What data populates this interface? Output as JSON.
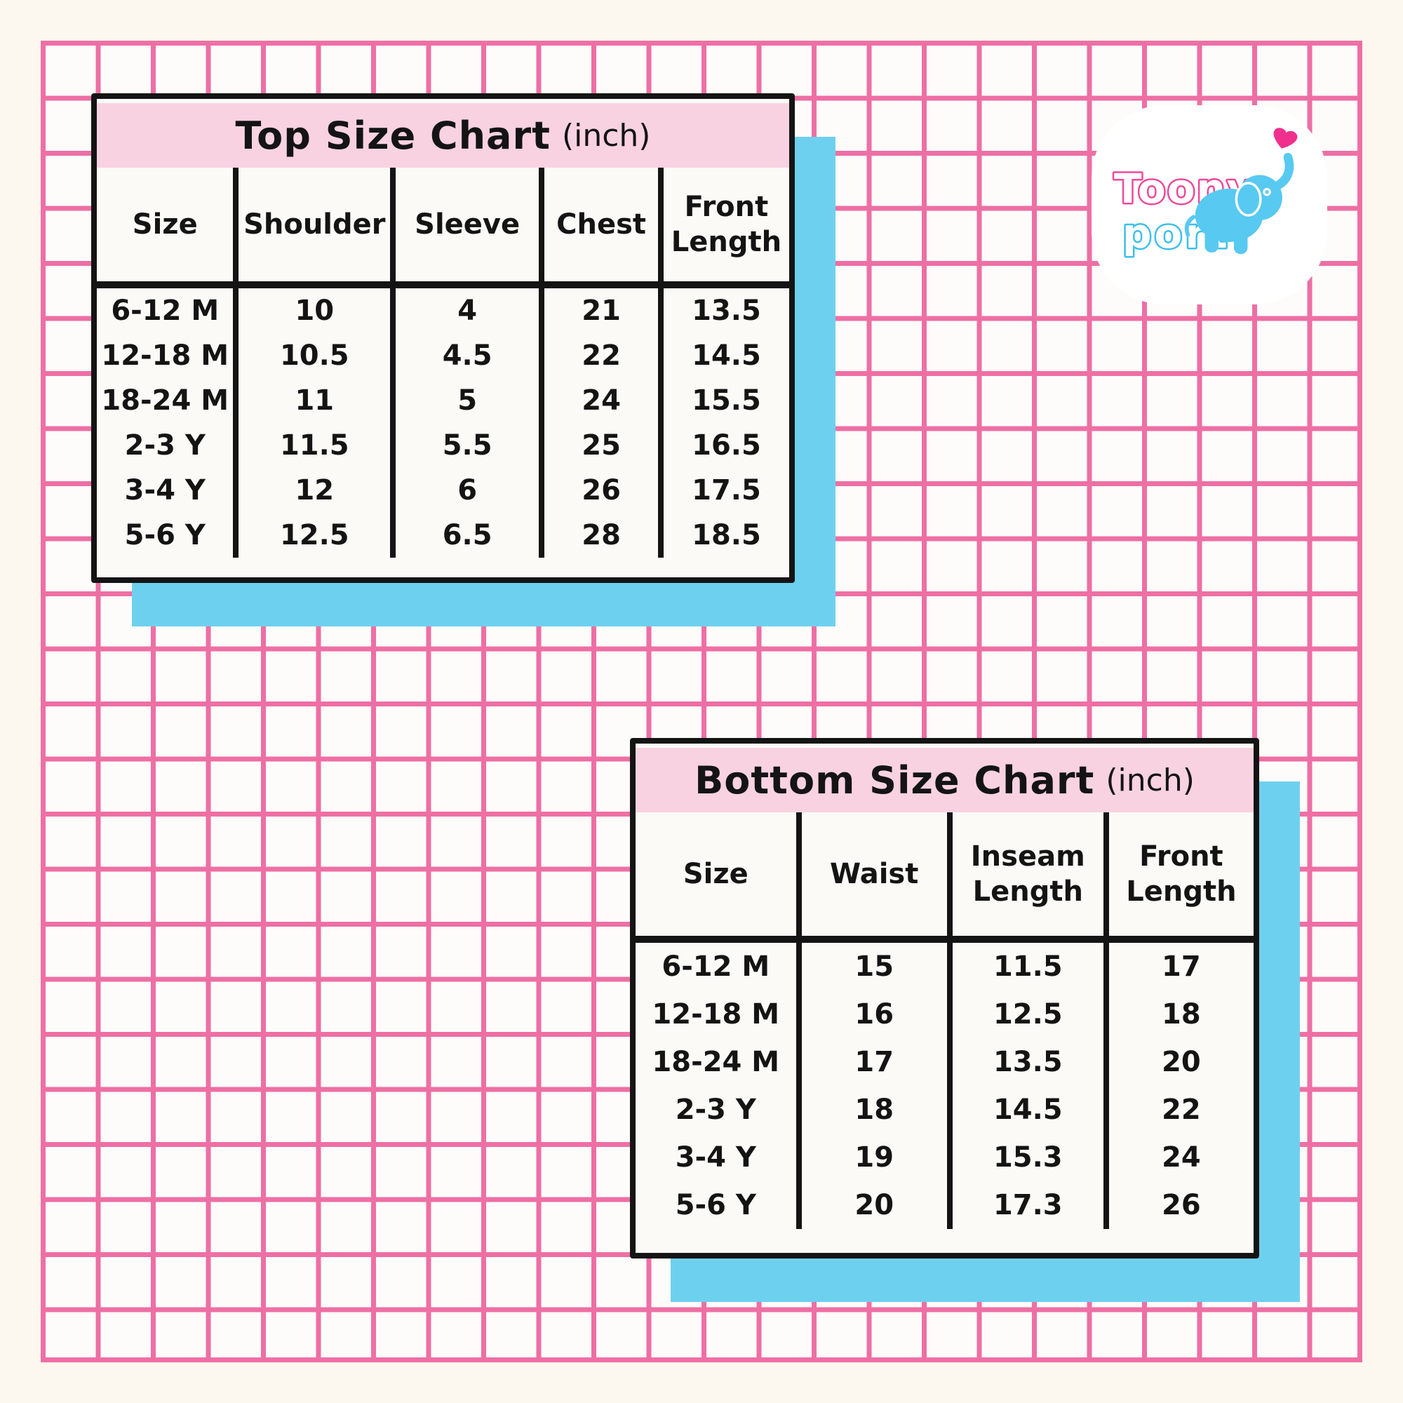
{
  "chart_data": [
    {
      "type": "table",
      "title": "Top Size Chart",
      "title_suffix": "(inch)",
      "columns": [
        "Size",
        "Shoulder",
        "Sleeve",
        "Chest",
        "Front Length"
      ],
      "rows": [
        [
          "6-12 M",
          "10",
          "4",
          "21",
          "13.5"
        ],
        [
          "12-18 M",
          "10.5",
          "4.5",
          "22",
          "14.5"
        ],
        [
          "18-24 M",
          "11",
          "5",
          "24",
          "15.5"
        ],
        [
          "2-3 Y",
          "11.5",
          "5.5",
          "25",
          "16.5"
        ],
        [
          "3-4 Y",
          "12",
          "6",
          "26",
          "17.5"
        ],
        [
          "5-6 Y",
          "12.5",
          "6.5",
          "28",
          "18.5"
        ]
      ]
    },
    {
      "type": "table",
      "title": "Bottom Size Chart",
      "title_suffix": "(inch)",
      "columns": [
        "Size",
        "Waist",
        "Inseam Length",
        "Front Length"
      ],
      "rows": [
        [
          "6-12 M",
          "15",
          "11.5",
          "17"
        ],
        [
          "12-18 M",
          "16",
          "12.5",
          "18"
        ],
        [
          "18-24 M",
          "17",
          "13.5",
          "20"
        ],
        [
          "2-3 Y",
          "18",
          "14.5",
          "22"
        ],
        [
          "3-4 Y",
          "19",
          "15.3",
          "24"
        ],
        [
          "5-6 Y",
          "20",
          "17.3",
          "26"
        ]
      ]
    }
  ],
  "logo": {
    "line1": "Toony",
    "line2": "port",
    "icon": "elephant-with-heart"
  },
  "colors": {
    "page_bg": "#fcf8f0",
    "cell_bg": "#fdfcfa",
    "grid_pink": "#ee6fa4",
    "header_pink": "#f9d2e1",
    "shadow_blue": "#6ed0ef",
    "ink": "#141414",
    "card_bg": "#fbfaf7",
    "logo_pink": "#ef4899",
    "logo_blue": "#3cc0ec",
    "heart_pink": "#f1308e",
    "elephant_blue": "#58c9f1"
  }
}
